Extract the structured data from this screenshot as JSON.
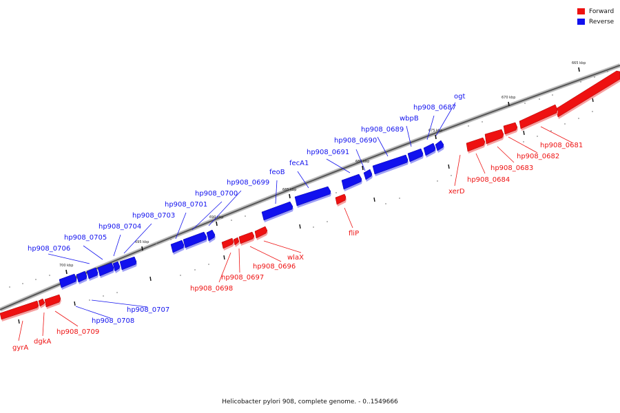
{
  "legend": {
    "forward_label": "Forward",
    "reverse_label": "Reverse",
    "forward_color": "#ee1111",
    "reverse_color": "#1111ee"
  },
  "caption": "Helicobacter pylori 908, complete genome. - 0..1549666",
  "ticks": [
    {
      "label": "665 kbp",
      "pos": 665
    },
    {
      "label": "670 kbp",
      "pos": 670
    },
    {
      "label": "675 kbp",
      "pos": 675
    },
    {
      "label": "680 kbp",
      "pos": 680
    },
    {
      "label": "685 kbp",
      "pos": 685
    },
    {
      "label": "690 kbp",
      "pos": 690
    },
    {
      "label": "695 kbp",
      "pos": 695
    },
    {
      "label": "700 kbp",
      "pos": 700
    }
  ],
  "genes": [
    {
      "name": "hp908_0681",
      "strand": "forward"
    },
    {
      "name": "hp908_0682",
      "strand": "forward"
    },
    {
      "name": "hp908_0683",
      "strand": "forward"
    },
    {
      "name": "hp908_0684",
      "strand": "forward"
    },
    {
      "name": "xerD",
      "strand": "forward"
    },
    {
      "name": "fliP",
      "strand": "forward"
    },
    {
      "name": "wlaX",
      "strand": "forward"
    },
    {
      "name": "hp908_0696",
      "strand": "forward"
    },
    {
      "name": "hp908_0697",
      "strand": "forward"
    },
    {
      "name": "hp908_0698",
      "strand": "forward"
    },
    {
      "name": "hp908_0709",
      "strand": "forward"
    },
    {
      "name": "dgkA",
      "strand": "forward"
    },
    {
      "name": "gyrA",
      "strand": "forward"
    },
    {
      "name": "ogt",
      "strand": "reverse"
    },
    {
      "name": "hp908_0687",
      "strand": "reverse"
    },
    {
      "name": "wbpB",
      "strand": "reverse"
    },
    {
      "name": "hp908_0689",
      "strand": "reverse"
    },
    {
      "name": "hp908_0690",
      "strand": "reverse"
    },
    {
      "name": "hp908_0691",
      "strand": "reverse"
    },
    {
      "name": "fecA1",
      "strand": "reverse"
    },
    {
      "name": "feoB",
      "strand": "reverse"
    },
    {
      "name": "hp908_0699",
      "strand": "reverse"
    },
    {
      "name": "hp908_0700",
      "strand": "reverse"
    },
    {
      "name": "hp908_0701",
      "strand": "reverse"
    },
    {
      "name": "hp908_0703",
      "strand": "reverse"
    },
    {
      "name": "hp908_0704",
      "strand": "reverse"
    },
    {
      "name": "hp908_0705",
      "strand": "reverse"
    },
    {
      "name": "hp908_0706",
      "strand": "reverse"
    },
    {
      "name": "hp908_0707",
      "strand": "reverse"
    },
    {
      "name": "hp908_0708",
      "strand": "reverse"
    }
  ]
}
